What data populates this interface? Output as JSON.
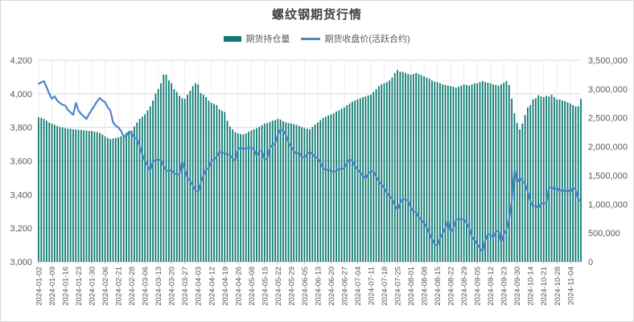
{
  "chart_data": {
    "type": "combo",
    "title": "螺纹钢期货行情",
    "legend_position": "top",
    "grid": true,
    "x_axis": {
      "points_per_tick": 5,
      "total_points": 205,
      "tick_labels": [
        "2024-01-02",
        "2024-01-09",
        "2024-01-16",
        "2024-01-23",
        "2024-01-30",
        "2024-02-06",
        "2024-02-21",
        "2024-02-28",
        "2024-03-06",
        "2024-03-13",
        "2024-03-20",
        "2024-03-27",
        "2024-04-03",
        "2024-04-12",
        "2024-04-19",
        "2024-04-26",
        "2024-05-08",
        "2024-05-15",
        "2024-05-22",
        "2024-05-29",
        "2024-06-05",
        "2024-06-13",
        "2024-06-20",
        "2024-06-27",
        "2024-07-04",
        "2024-07-11",
        "2024-07-18",
        "2024-07-25",
        "2024-08-01",
        "2024-08-08",
        "2024-08-15",
        "2024-08-22",
        "2024-08-29",
        "2024-09-05",
        "2024-09-12",
        "2024-09-23",
        "2024-09-30",
        "2024-10-14",
        "2024-10-21",
        "2024-10-28",
        "2024-11-04"
      ]
    },
    "left_axis": {
      "min": 3000,
      "max": 4200,
      "step": 200,
      "labels": [
        "3,000",
        "3,200",
        "3,400",
        "3,600",
        "3,800",
        "4,000",
        "4,200"
      ]
    },
    "right_axis": {
      "min": 0,
      "max": 3500000,
      "step": 500000,
      "labels": [
        "0",
        "500,000",
        "1,000,000",
        "1,500,000",
        "2,000,000",
        "2,500,000",
        "3,000,000",
        "3,500,000"
      ]
    },
    "series": [
      {
        "name": "期货持仓量",
        "type": "bar",
        "axis": "right",
        "color": "#0e7a73",
        "values": [
          2510000,
          2500000,
          2480000,
          2450000,
          2420000,
          2400000,
          2380000,
          2360000,
          2340000,
          2330000,
          2320000,
          2310000,
          2310000,
          2300000,
          2300000,
          2290000,
          2290000,
          2280000,
          2280000,
          2270000,
          2270000,
          2260000,
          2250000,
          2240000,
          2210000,
          2180000,
          2150000,
          2130000,
          2140000,
          2150000,
          2160000,
          2180000,
          2210000,
          2240000,
          2260000,
          2280000,
          2350000,
          2420000,
          2480000,
          2520000,
          2560000,
          2630000,
          2700000,
          2800000,
          2920000,
          3000000,
          3100000,
          3250000,
          3250000,
          3150000,
          3100000,
          3000000,
          2950000,
          2880000,
          2840000,
          2830000,
          2900000,
          2970000,
          3050000,
          3100000,
          3080000,
          2930000,
          2900000,
          2860000,
          2800000,
          2760000,
          2740000,
          2720000,
          2650000,
          2620000,
          2600000,
          2450000,
          2350000,
          2300000,
          2250000,
          2230000,
          2220000,
          2210000,
          2230000,
          2260000,
          2280000,
          2300000,
          2320000,
          2340000,
          2370000,
          2400000,
          2410000,
          2430000,
          2450000,
          2460000,
          2480000,
          2470000,
          2440000,
          2420000,
          2410000,
          2400000,
          2390000,
          2380000,
          2360000,
          2340000,
          2320000,
          2310000,
          2300000,
          2340000,
          2380000,
          2420000,
          2460000,
          2500000,
          2520000,
          2540000,
          2560000,
          2580000,
          2610000,
          2630000,
          2660000,
          2680000,
          2720000,
          2750000,
          2780000,
          2800000,
          2820000,
          2840000,
          2860000,
          2870000,
          2890000,
          2900000,
          2950000,
          3000000,
          3050000,
          3080000,
          3100000,
          3120000,
          3150000,
          3200000,
          3280000,
          3330000,
          3300000,
          3300000,
          3280000,
          3260000,
          3250000,
          3260000,
          3280000,
          3260000,
          3240000,
          3220000,
          3200000,
          3180000,
          3150000,
          3130000,
          3120000,
          3100000,
          3080000,
          3070000,
          3060000,
          3050000,
          3040000,
          3020000,
          3040000,
          3060000,
          3080000,
          3070000,
          3060000,
          3080000,
          3100000,
          3100000,
          3120000,
          3140000,
          3120000,
          3110000,
          3100000,
          3080000,
          3070000,
          3060000,
          3080000,
          3110000,
          3140000,
          3070000,
          2830000,
          2580000,
          2410000,
          2300000,
          2400000,
          2550000,
          2680000,
          2720000,
          2820000,
          2840000,
          2890000,
          2870000,
          2860000,
          2880000,
          2870000,
          2900000,
          2860000,
          2820000,
          2820000,
          2800000,
          2790000,
          2770000,
          2750000,
          2720000,
          2700000,
          2700000,
          2830000
        ]
      },
      {
        "name": "期货收盘价(活跃合约)",
        "type": "line",
        "axis": "left",
        "color": "#4a86c8",
        "values": [
          4060,
          4068,
          4075,
          4040,
          4000,
          3970,
          3985,
          3960,
          3945,
          3935,
          3930,
          3905,
          3890,
          3875,
          3945,
          3900,
          3880,
          3865,
          3850,
          3880,
          3905,
          3930,
          3955,
          3975,
          3960,
          3950,
          3920,
          3900,
          3830,
          3810,
          3800,
          3780,
          3745,
          3750,
          3775,
          3765,
          3740,
          3730,
          3690,
          3640,
          3600,
          3570,
          3545,
          3595,
          3605,
          3610,
          3605,
          3570,
          3545,
          3540,
          3545,
          3525,
          3520,
          3520,
          3600,
          3550,
          3500,
          3480,
          3455,
          3425,
          3415,
          3470,
          3515,
          3550,
          3560,
          3600,
          3610,
          3625,
          3655,
          3650,
          3645,
          3640,
          3635,
          3615,
          3600,
          3670,
          3680,
          3670,
          3675,
          3680,
          3680,
          3670,
          3630,
          3655,
          3660,
          3610,
          3615,
          3680,
          3695,
          3705,
          3760,
          3790,
          3780,
          3755,
          3710,
          3685,
          3660,
          3640,
          3650,
          3625,
          3620,
          3640,
          3655,
          3640,
          3625,
          3615,
          3590,
          3560,
          3545,
          3550,
          3540,
          3535,
          3540,
          3555,
          3550,
          3560,
          3590,
          3610,
          3600,
          3570,
          3550,
          3530,
          3515,
          3495,
          3525,
          3535,
          3540,
          3505,
          3480,
          3460,
          3440,
          3410,
          3390,
          3375,
          3335,
          3310,
          3350,
          3375,
          3370,
          3365,
          3325,
          3300,
          3295,
          3265,
          3250,
          3230,
          3205,
          3170,
          3135,
          3105,
          3095,
          3140,
          3170,
          3200,
          3245,
          3180,
          3200,
          3250,
          3255,
          3250,
          3255,
          3230,
          3200,
          3150,
          3130,
          3105,
          3080,
          3060,
          3130,
          3165,
          3160,
          3145,
          3180,
          3185,
          3115,
          3165,
          3190,
          3255,
          3360,
          3550,
          3470,
          3500,
          3480,
          3465,
          3420,
          3360,
          3330,
          3335,
          3320,
          3345,
          3350,
          3350,
          3440,
          3445,
          3430,
          3440,
          3420,
          3430,
          3415,
          3430,
          3415,
          3440,
          3430,
          3375,
          3360
        ]
      }
    ],
    "style": {
      "gridline_color": "#d9d9d9",
      "vertical_gridline_color": "#ededed",
      "axis_line_color": "#c6c6c6",
      "axis_text_color": "#595959",
      "title_color": "#404040"
    }
  }
}
